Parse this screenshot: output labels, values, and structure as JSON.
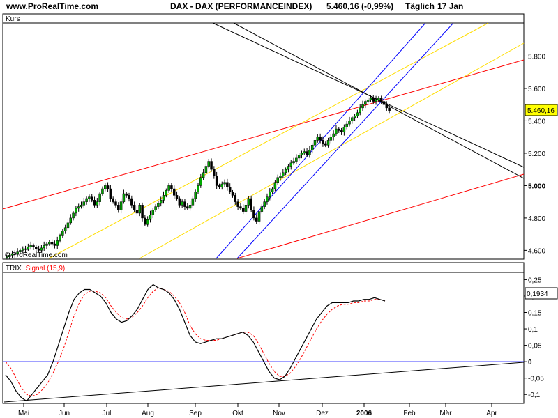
{
  "header": {
    "site": "www.ProRealTime.com",
    "instrument": "DAX - DAX (PERFORMANCEINDEX)",
    "price_change": "5.460,16 (-0,99%)",
    "frequency": "Täglich",
    "date": "17 Jan"
  },
  "chart_data": [
    {
      "type": "candlestick",
      "panel_label": "Kurs",
      "watermark": "© ProRealTime.com",
      "ylim": [
        4550,
        6000
      ],
      "y_ticks": [
        "5.800",
        "5.600",
        "5.400",
        "5.200",
        "5.000",
        "4.800",
        "4.600"
      ],
      "y_tick_values": [
        5800,
        5600,
        5400,
        5200,
        5000,
        4800,
        4600
      ],
      "last_value_label": "5.460,16",
      "last_value": 5460.16,
      "colors": {
        "up": "#00aa00",
        "down": "#000000",
        "last_value_box": "#ffff00"
      },
      "closes": [
        4560,
        4570,
        4580,
        4575,
        4590,
        4600,
        4610,
        4605,
        4620,
        4630,
        4620,
        4610,
        4600,
        4615,
        4630,
        4640,
        4650,
        4640,
        4630,
        4660,
        4690,
        4720,
        4740,
        4770,
        4800,
        4830,
        4860,
        4870,
        4880,
        4900,
        4920,
        4930,
        4910,
        4880,
        4900,
        4950,
        4980,
        5000,
        4980,
        4920,
        4900,
        4880,
        4850,
        4900,
        4950,
        4940,
        4920,
        4880,
        4850,
        4830,
        4880,
        4800,
        4760,
        4790,
        4820,
        4850,
        4870,
        4890,
        4910,
        4940,
        4970,
        5000,
        4980,
        4940,
        4920,
        4880,
        4900,
        4870,
        4860,
        4880,
        4920,
        4960,
        5000,
        5050,
        5080,
        5120,
        5150,
        5100,
        5060,
        5000,
        4990,
        5010,
        5020,
        4990,
        4960,
        4940,
        4900,
        4870,
        4860,
        4840,
        4880,
        4920,
        4850,
        4800,
        4780,
        4840,
        4870,
        4900,
        4930,
        4960,
        4980,
        5020,
        5050,
        5060,
        5080,
        5100,
        5120,
        5140,
        5150,
        5170,
        5190,
        5200,
        5210,
        5190,
        5220,
        5250,
        5280,
        5300,
        5280,
        5260,
        5250,
        5280,
        5300,
        5320,
        5350,
        5340,
        5330,
        5360,
        5380,
        5400,
        5420,
        5430,
        5450,
        5480,
        5500,
        5520,
        5530,
        5540,
        5520,
        5530,
        5540,
        5520,
        5500,
        5480,
        5460
      ]
    },
    {
      "type": "line",
      "panel_label": "TRIX",
      "series": [
        {
          "name": "TRIX",
          "color": "#000000",
          "values": [
            -0.04,
            -0.06,
            -0.09,
            -0.11,
            -0.12,
            -0.1,
            -0.08,
            -0.06,
            -0.04,
            0.0,
            0.05,
            0.1,
            0.15,
            0.19,
            0.21,
            0.22,
            0.22,
            0.21,
            0.2,
            0.18,
            0.15,
            0.13,
            0.12,
            0.125,
            0.14,
            0.16,
            0.19,
            0.22,
            0.235,
            0.225,
            0.22,
            0.21,
            0.19,
            0.16,
            0.12,
            0.08,
            0.06,
            0.055,
            0.06,
            0.065,
            0.07,
            0.07,
            0.075,
            0.08,
            0.085,
            0.09,
            0.08,
            0.06,
            0.03,
            0.0,
            -0.03,
            -0.05,
            -0.055,
            -0.045,
            -0.02,
            0.01,
            0.04,
            0.07,
            0.1,
            0.13,
            0.15,
            0.17,
            0.18,
            0.18,
            0.18,
            0.18,
            0.185,
            0.185,
            0.19,
            0.19,
            0.195,
            0.19,
            0.185
          ]
        },
        {
          "name": "Signal (15,9)",
          "color": "#ff0000",
          "values": [
            0.0,
            -0.02,
            -0.05,
            -0.08,
            -0.1,
            -0.105,
            -0.1,
            -0.085,
            -0.065,
            -0.035,
            0.0,
            0.04,
            0.09,
            0.14,
            0.18,
            0.205,
            0.215,
            0.215,
            0.21,
            0.195,
            0.17,
            0.15,
            0.135,
            0.13,
            0.135,
            0.15,
            0.17,
            0.195,
            0.215,
            0.225,
            0.22,
            0.215,
            0.2,
            0.18,
            0.15,
            0.11,
            0.085,
            0.07,
            0.065,
            0.065,
            0.065,
            0.07,
            0.075,
            0.08,
            0.085,
            0.09,
            0.09,
            0.08,
            0.055,
            0.025,
            -0.005,
            -0.03,
            -0.045,
            -0.045,
            -0.035,
            -0.015,
            0.01,
            0.04,
            0.07,
            0.1,
            0.125,
            0.145,
            0.16,
            0.17,
            0.175,
            0.175,
            0.18,
            0.18,
            0.185,
            0.185,
            0.19,
            0.19,
            0.185
          ]
        }
      ],
      "ylim": [
        -0.125,
        0.27
      ],
      "y_ticks": [
        "0,25",
        "0,2",
        "0,15",
        "0,1",
        "0,05",
        "0",
        "-0,05",
        "-0,1"
      ],
      "y_tick_values": [
        0.25,
        0.2,
        0.15,
        0.1,
        0.05,
        0,
        -0.05,
        -0.1
      ],
      "last_value_label": "0,1934",
      "last_value": 0.1934,
      "zero_line_color": "#0000ff"
    }
  ],
  "x_axis": {
    "labels": [
      "Mai",
      "Jun",
      "Jul",
      "Aug",
      "Sep",
      "Okt",
      "Nov",
      "Dez",
      "2006",
      "Feb",
      "Mär",
      "Apr"
    ],
    "highlight_label": "2006"
  },
  "trendlines": {
    "colors": [
      "#ffdd00",
      "#0000ff",
      "#ff0000",
      "#000000"
    ]
  }
}
